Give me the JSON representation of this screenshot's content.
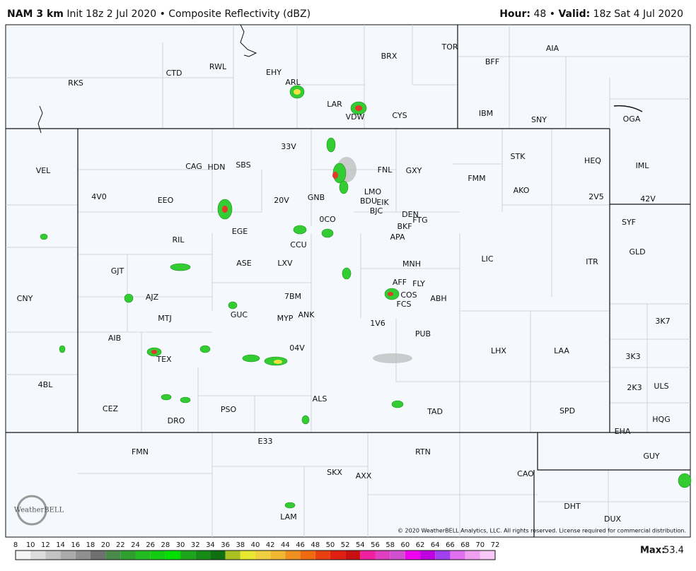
{
  "header": {
    "model": "NAM 3 km",
    "init": "Init 18z 2 Jul 2020",
    "sep": "•",
    "product": "Composite Reflectivity (dBZ)",
    "hour_label": "Hour:",
    "hour": "48",
    "sep2": "•",
    "valid_label": "Valid:",
    "valid": "18z Sat 4 Jul 2020"
  },
  "stations": [
    "RKS",
    "CTD",
    "RWL",
    "EHY",
    "ARL",
    "BRX",
    "TOR",
    "AIA",
    "BFF",
    "LAR",
    "VDW",
    "CYS",
    "IBM",
    "SNY",
    "OGA",
    "33V",
    "VEL",
    "CAG",
    "HDN",
    "SBS",
    "FNL",
    "GXY",
    "STK",
    "HEQ",
    "IML",
    "FMM",
    "AKO",
    "4V0",
    "EEO",
    "20V",
    "GNB",
    "LMO",
    "EIK",
    "BDU",
    "BJC",
    "2V5",
    "42V",
    "DEN",
    "FTG",
    "0CO",
    "BKF",
    "SYF",
    "EGE",
    "APA",
    "RIL",
    "CCU",
    "GLD",
    "LIC",
    "ASE",
    "LXV",
    "MNH",
    "ITR",
    "GJT",
    "AFF",
    "FLY",
    "COS",
    "FCS",
    "AJZ",
    "7BM",
    "ABH",
    "CNY",
    "MTJ",
    "GUC",
    "MYP",
    "ANK",
    "1V6",
    "3K7",
    "PUB",
    "AIB",
    "04V",
    "LHX",
    "LAA",
    "TEX",
    "3K3",
    "4BL",
    "ULS",
    "2K3",
    "CEZ",
    "ALS",
    "PSO",
    "TAD",
    "SPD",
    "DRO",
    "HQG",
    "EHA",
    "E33",
    "FMN",
    "RTN",
    "GUY",
    "CAO",
    "SKX",
    "AXX",
    "DHT",
    "DUX",
    "LAM"
  ],
  "copyright": "© 2020 WeatherBELL Analytics, LLC. All rights reserved. License required for commercial distribution.",
  "logo": "WeatherBELL",
  "colorbar": {
    "ticks": [
      8,
      10,
      12,
      14,
      16,
      18,
      20,
      22,
      24,
      26,
      28,
      30,
      32,
      34,
      36,
      38,
      40,
      42,
      44,
      46,
      48,
      50,
      52,
      54,
      56,
      58,
      60,
      62,
      64,
      66,
      68,
      70,
      72
    ],
    "colors": [
      "#f4f4f4",
      "#dcdcdc",
      "#c4c4c4",
      "#ababab",
      "#8f8f8f",
      "#707070",
      "#4a8a4a",
      "#2fa02f",
      "#22bb22",
      "#11cc11",
      "#00e000",
      "#1aa51a",
      "#168c16",
      "#107010",
      "#a8c020",
      "#e8e830",
      "#f0d040",
      "#f0b830",
      "#f09020",
      "#f06a10",
      "#e84010",
      "#e02010",
      "#c81010",
      "#f020a0",
      "#e040c0",
      "#d050d0",
      "#f000f0",
      "#c000e0",
      "#a040f0",
      "#e070f0",
      "#f0a0f0",
      "#f8c8f8"
    ]
  },
  "max": {
    "label": "Max:",
    "value": "53.4"
  }
}
